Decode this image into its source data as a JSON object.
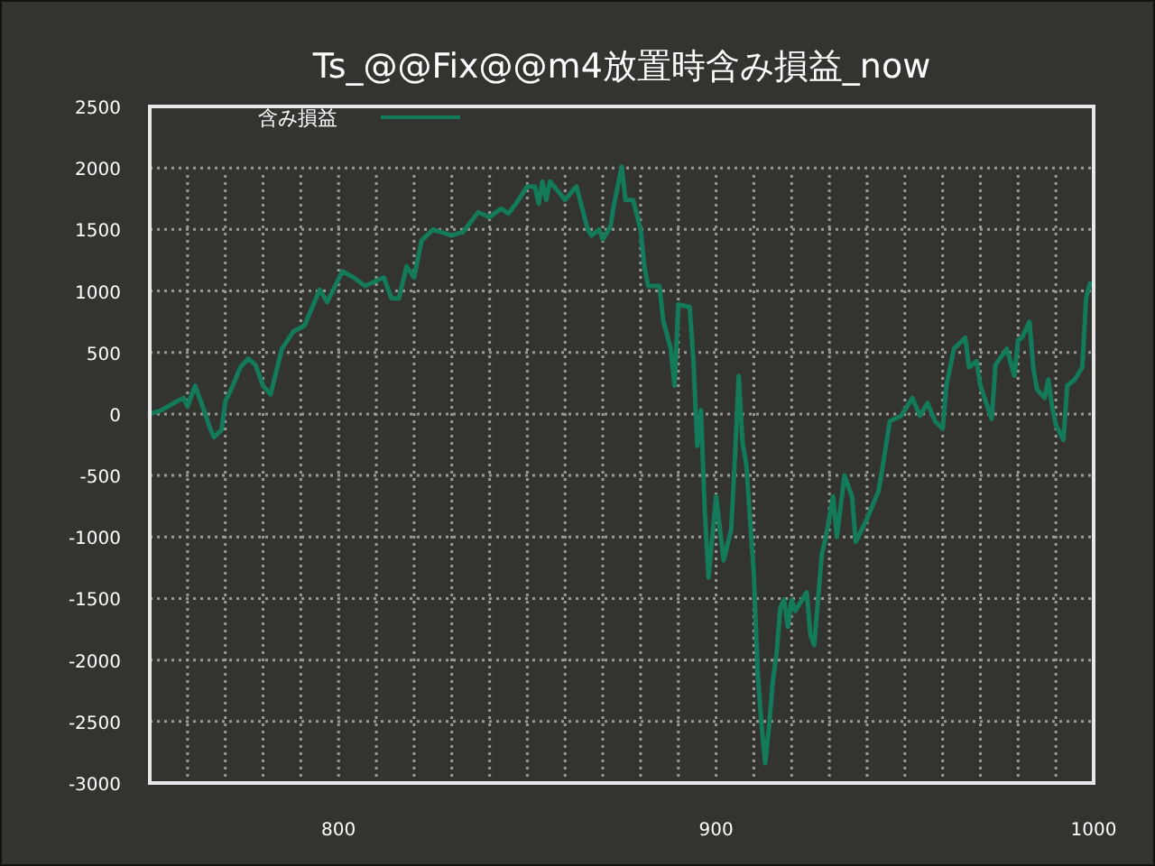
{
  "chart_data": {
    "type": "line",
    "title": "Ts_@@Fix@@m4放置時含み損益_now",
    "x": [
      750,
      753,
      757,
      759,
      760,
      762,
      764,
      766,
      767,
      769,
      770,
      772,
      774,
      776,
      778,
      780,
      782,
      785,
      788,
      791,
      795,
      797,
      801,
      804,
      807,
      812,
      814,
      816,
      818,
      820,
      822,
      825,
      830,
      833,
      837,
      840,
      843,
      845,
      847,
      850,
      852,
      853,
      854,
      855,
      856,
      860,
      863,
      866,
      867,
      869,
      870,
      872,
      873,
      875,
      876,
      878,
      880,
      881,
      882,
      885,
      886,
      888,
      889,
      890,
      893,
      894,
      895,
      896,
      897,
      898,
      899,
      900,
      902,
      904,
      905,
      906,
      907,
      908,
      909,
      910,
      911,
      912,
      913,
      914,
      915,
      916,
      917,
      918,
      919,
      920,
      921,
      924,
      925,
      926,
      927,
      928,
      929,
      931,
      932,
      934,
      936,
      937,
      940,
      943,
      944,
      946,
      949,
      952,
      954,
      956,
      958,
      960,
      961,
      963,
      966,
      967,
      969,
      970,
      973,
      974,
      977,
      979,
      980,
      981,
      983,
      984,
      985,
      987,
      988,
      989,
      990,
      992,
      993,
      995,
      997,
      998,
      999
    ],
    "series": [
      {
        "name": "含み損益",
        "color": "#137a5a",
        "values": [
          0,
          30,
          100,
          130,
          60,
          230,
          60,
          -120,
          -190,
          -130,
          100,
          230,
          380,
          450,
          400,
          230,
          160,
          530,
          670,
          720,
          1010,
          910,
          1160,
          1110,
          1040,
          1110,
          940,
          940,
          1200,
          1110,
          1410,
          1500,
          1450,
          1480,
          1640,
          1600,
          1670,
          1630,
          1710,
          1850,
          1850,
          1710,
          1890,
          1740,
          1890,
          1740,
          1850,
          1500,
          1450,
          1500,
          1420,
          1520,
          1710,
          2010,
          1740,
          1740,
          1500,
          1200,
          1040,
          1040,
          760,
          530,
          230,
          890,
          870,
          430,
          -260,
          30,
          -790,
          -1330,
          -1000,
          -670,
          -1190,
          -940,
          -350,
          310,
          -230,
          -410,
          -860,
          -1300,
          -2100,
          -2510,
          -2840,
          -2550,
          -2180,
          -1950,
          -1580,
          -1510,
          -1730,
          -1510,
          -1600,
          -1450,
          -1800,
          -1880,
          -1510,
          -1140,
          -1010,
          -670,
          -1000,
          -500,
          -670,
          -1040,
          -850,
          -630,
          -450,
          -60,
          -15,
          130,
          -15,
          90,
          -60,
          -120,
          230,
          530,
          620,
          380,
          430,
          230,
          -40,
          400,
          530,
          310,
          600,
          620,
          750,
          380,
          200,
          130,
          280,
          60,
          -90,
          -210,
          230,
          280,
          380,
          940,
          1060
        ]
      }
    ],
    "xlim": [
      750,
      1000
    ],
    "xticks": [
      {
        "value": 760,
        "label": null
      },
      {
        "value": 770,
        "label": null
      },
      {
        "value": 780,
        "label": null
      },
      {
        "value": 790,
        "label": null
      },
      800,
      {
        "value": 810,
        "label": null
      },
      {
        "value": 820,
        "label": null
      },
      {
        "value": 830,
        "label": null
      },
      {
        "value": 840,
        "label": null
      },
      {
        "value": 850,
        "label": null
      },
      {
        "value": 860,
        "label": null
      },
      {
        "value": 870,
        "label": null
      },
      {
        "value": 880,
        "label": null
      },
      {
        "value": 890,
        "label": null
      },
      900,
      {
        "value": 910,
        "label": null
      },
      {
        "value": 920,
        "label": null
      },
      {
        "value": 930,
        "label": null
      },
      {
        "value": 940,
        "label": null
      },
      {
        "value": 950,
        "label": null
      },
      {
        "value": 960,
        "label": null
      },
      {
        "value": 970,
        "label": null
      },
      {
        "value": 980,
        "label": null
      },
      {
        "value": 990,
        "label": null
      },
      1000
    ],
    "ylim": [
      -3000,
      2500
    ],
    "yticks": [
      -3000,
      -2500,
      -2000,
      -1500,
      -1000,
      -500,
      0,
      500,
      1000,
      1500,
      2000,
      2500
    ],
    "grid": true,
    "legend": "top left",
    "marker": "none",
    "line_style": "solid"
  }
}
